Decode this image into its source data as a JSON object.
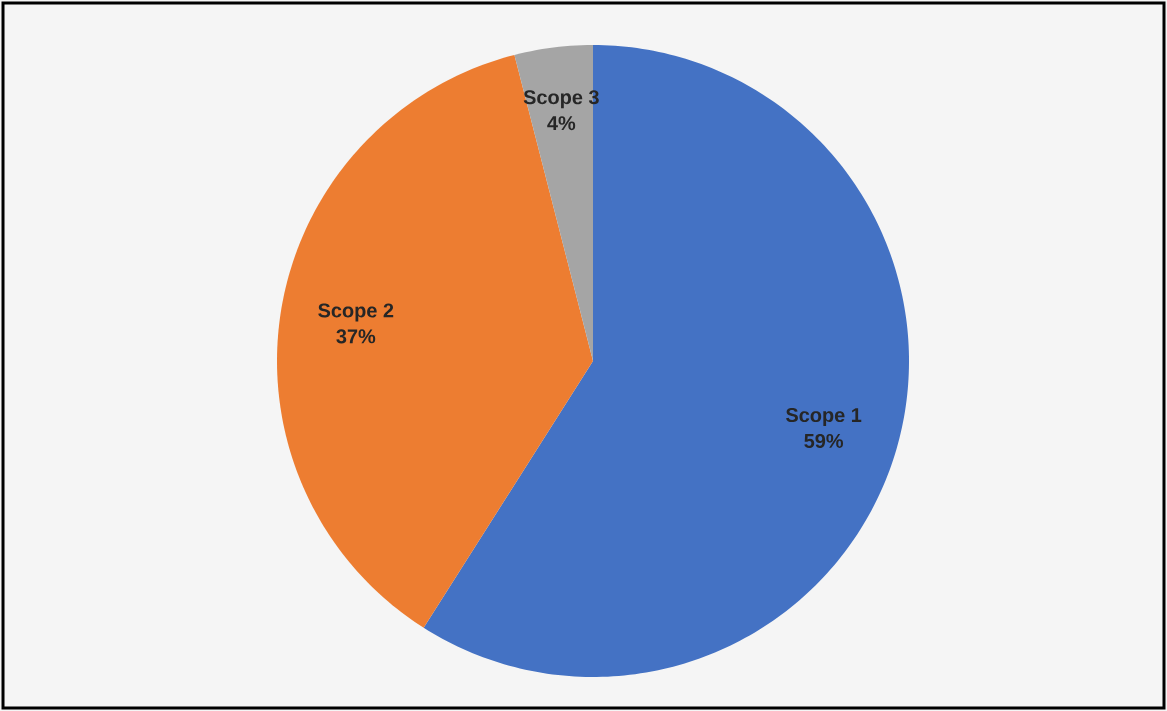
{
  "chart_data": {
    "type": "pie",
    "categories": [
      "Scope 1",
      "Scope 2",
      "Scope 3"
    ],
    "values": [
      59,
      37,
      4
    ],
    "colors": [
      "#4472c4",
      "#ed7d31",
      "#a5a5a5"
    ],
    "value_labels": [
      "59%",
      "37%",
      "4%"
    ]
  }
}
